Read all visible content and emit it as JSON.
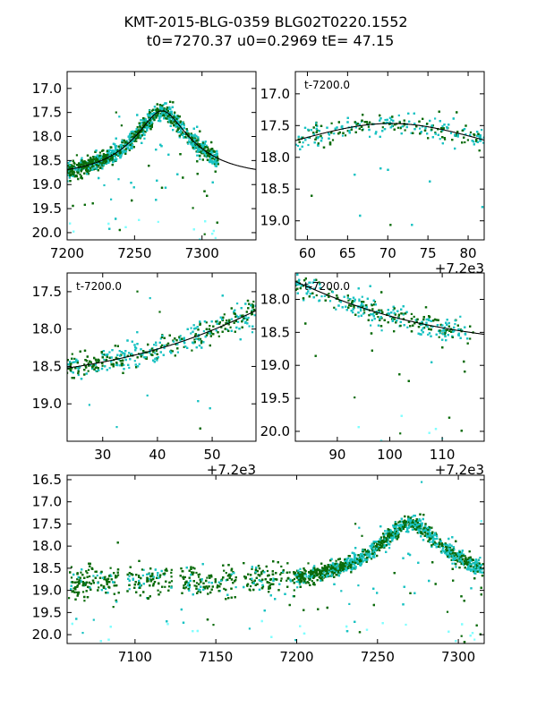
{
  "figure": {
    "title_line1": "KMT-2015-BLG-0359 BLG02T0220.1552",
    "title_line2": "t0=7270.37 u0=0.2969 tE=  47.15"
  },
  "colors": {
    "dark_points": "#0b6b0b",
    "cyan_points": "#19c2c2",
    "light_cyan": "#7fffff",
    "model_line": "#000000"
  },
  "model": {
    "t0": 7270.37,
    "u0": 0.2969,
    "tE": 47.15,
    "baseline_mag": 18.82
  },
  "chart_data": [
    {
      "id": "panel-full-zoom",
      "type": "scatter",
      "xlim": [
        7200,
        7340
      ],
      "ylim": [
        20.15,
        16.65
      ],
      "xticks": [
        7200,
        7250,
        7300
      ],
      "xtick_labels": [
        "7200",
        "7250",
        "7300"
      ],
      "yticks": [
        17.0,
        17.5,
        18.0,
        18.5,
        19.0,
        19.5,
        20.0
      ],
      "ytick_labels": [
        "17.0",
        "17.5",
        "18.0",
        "18.5",
        "19.0",
        "19.5",
        "20.0"
      ],
      "annotation": "",
      "offset_label": "",
      "data_range": [
        7200,
        7312
      ]
    },
    {
      "id": "panel-peak",
      "type": "scatter",
      "xlim": [
        7258.5,
        7282
      ],
      "ylim": [
        19.3,
        16.65
      ],
      "xticks": [
        7260,
        7265,
        7270,
        7275,
        7280
      ],
      "xtick_labels": [
        "60",
        "65",
        "70",
        "75",
        "80"
      ],
      "yticks": [
        17.0,
        17.5,
        18.0,
        18.5,
        19.0
      ],
      "ytick_labels": [
        "17.0",
        "17.5",
        "18.0",
        "18.5",
        "19.0"
      ],
      "annotation": "t-7200.0",
      "offset_label": "+7.2e3",
      "data_range": [
        7258.5,
        7282
      ]
    },
    {
      "id": "panel-rise",
      "type": "scatter",
      "xlim": [
        7223.5,
        7258
      ],
      "ylim": [
        19.5,
        17.25
      ],
      "xticks": [
        7230,
        7240,
        7250
      ],
      "xtick_labels": [
        "30",
        "40",
        "50"
      ],
      "yticks": [
        17.5,
        18.0,
        18.5,
        19.0
      ],
      "ytick_labels": [
        "17.5",
        "18.0",
        "18.5",
        "19.0"
      ],
      "annotation": "t-7200.0",
      "offset_label": "+7.2e3",
      "data_range": [
        7223.5,
        7258
      ]
    },
    {
      "id": "panel-fall",
      "type": "scatter",
      "xlim": [
        7282,
        7318
      ],
      "ylim": [
        20.15,
        17.6
      ],
      "xticks": [
        7290,
        7300,
        7310
      ],
      "xtick_labels": [
        "90",
        "100",
        "110"
      ],
      "yticks": [
        18.0,
        18.5,
        19.0,
        19.5,
        20.0
      ],
      "ytick_labels": [
        "18.0",
        "18.5",
        "19.0",
        "19.5",
        "20.0"
      ],
      "annotation": "t-7200.0",
      "offset_label": "+7.2e3",
      "data_range": [
        7282,
        7318
      ]
    },
    {
      "id": "panel-season",
      "type": "scatter",
      "xlim": [
        7058,
        7316
      ],
      "ylim": [
        20.2,
        16.4
      ],
      "xticks": [
        7100,
        7150,
        7200,
        7250,
        7300
      ],
      "xtick_labels": [
        "7100",
        "7150",
        "7200",
        "7250",
        "7300"
      ],
      "yticks": [
        16.5,
        17.0,
        17.5,
        18.0,
        18.5,
        19.0,
        19.5,
        20.0
      ],
      "ytick_labels": [
        "16.5",
        "17.0",
        "17.5",
        "18.0",
        "18.5",
        "19.0",
        "19.5",
        "20.0"
      ],
      "annotation": "",
      "offset_label": "",
      "data_range": [
        7058,
        7316
      ]
    }
  ]
}
